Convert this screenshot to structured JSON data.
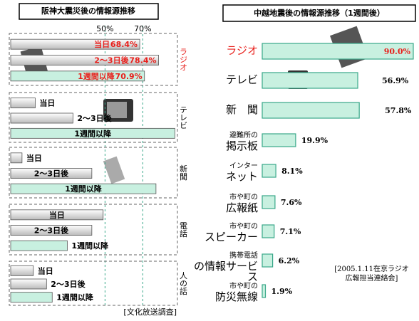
{
  "chart_data": [
    {
      "type": "bar",
      "title": "阪神大震災後の情報源推移",
      "categories": [
        "当日",
        "2〜3日後",
        "1週間以降"
      ],
      "category_colors": [
        "#d4d4d4",
        "#d4d4d4",
        "#c8f0e0"
      ],
      "series": [
        {
          "name": "ラジオ",
          "color": "#e8201c",
          "values": [
            68.4,
            78.4,
            70.9
          ],
          "value_labels": [
            "68.4%",
            "78.4%",
            "70.9%"
          ]
        },
        {
          "name": "テレビ",
          "color": "#000000",
          "values": [
            13,
            33,
            87
          ]
        },
        {
          "name": "新聞",
          "color": "#000000",
          "values": [
            6,
            43,
            77
          ]
        },
        {
          "name": "電話",
          "color": "#000000",
          "values": [
            49,
            43,
            30
          ]
        },
        {
          "name": "人の話",
          "color": "#000000",
          "values": [
            12,
            19,
            22
          ]
        }
      ],
      "xlim": [
        0,
        88
      ],
      "xticks": [
        {
          "value": 50,
          "label": "50%"
        },
        {
          "value": 70,
          "label": "70%"
        }
      ],
      "source": "[文化放送調査]"
    },
    {
      "type": "bar",
      "title": "中越地震後の情報源推移（1週間後）",
      "categories": [
        "ラジオ",
        "テレビ",
        "新　聞",
        "避難所の\n掲示板",
        "インター\nネット",
        "市や町の\n広報紙",
        "市や町の\nスピーカー",
        "携帯電話\nの情報サービス",
        "市や町の\n防災無線"
      ],
      "values": [
        90.0,
        56.9,
        57.8,
        19.9,
        8.1,
        7.6,
        7.1,
        6.2,
        1.9
      ],
      "value_labels": [
        "90.0%",
        "56.9%",
        "57.8%",
        "19.9%",
        "8.1%",
        "7.6%",
        "7.1%",
        "6.2%",
        "1.9%"
      ],
      "color": "#c8f0e0",
      "edge_color": "#3aa88a",
      "highlight_color": "#e8201c",
      "xlim": [
        0,
        90
      ],
      "note": "[2005.1.11在京ラジオ\n広報担当連絡会]"
    }
  ]
}
